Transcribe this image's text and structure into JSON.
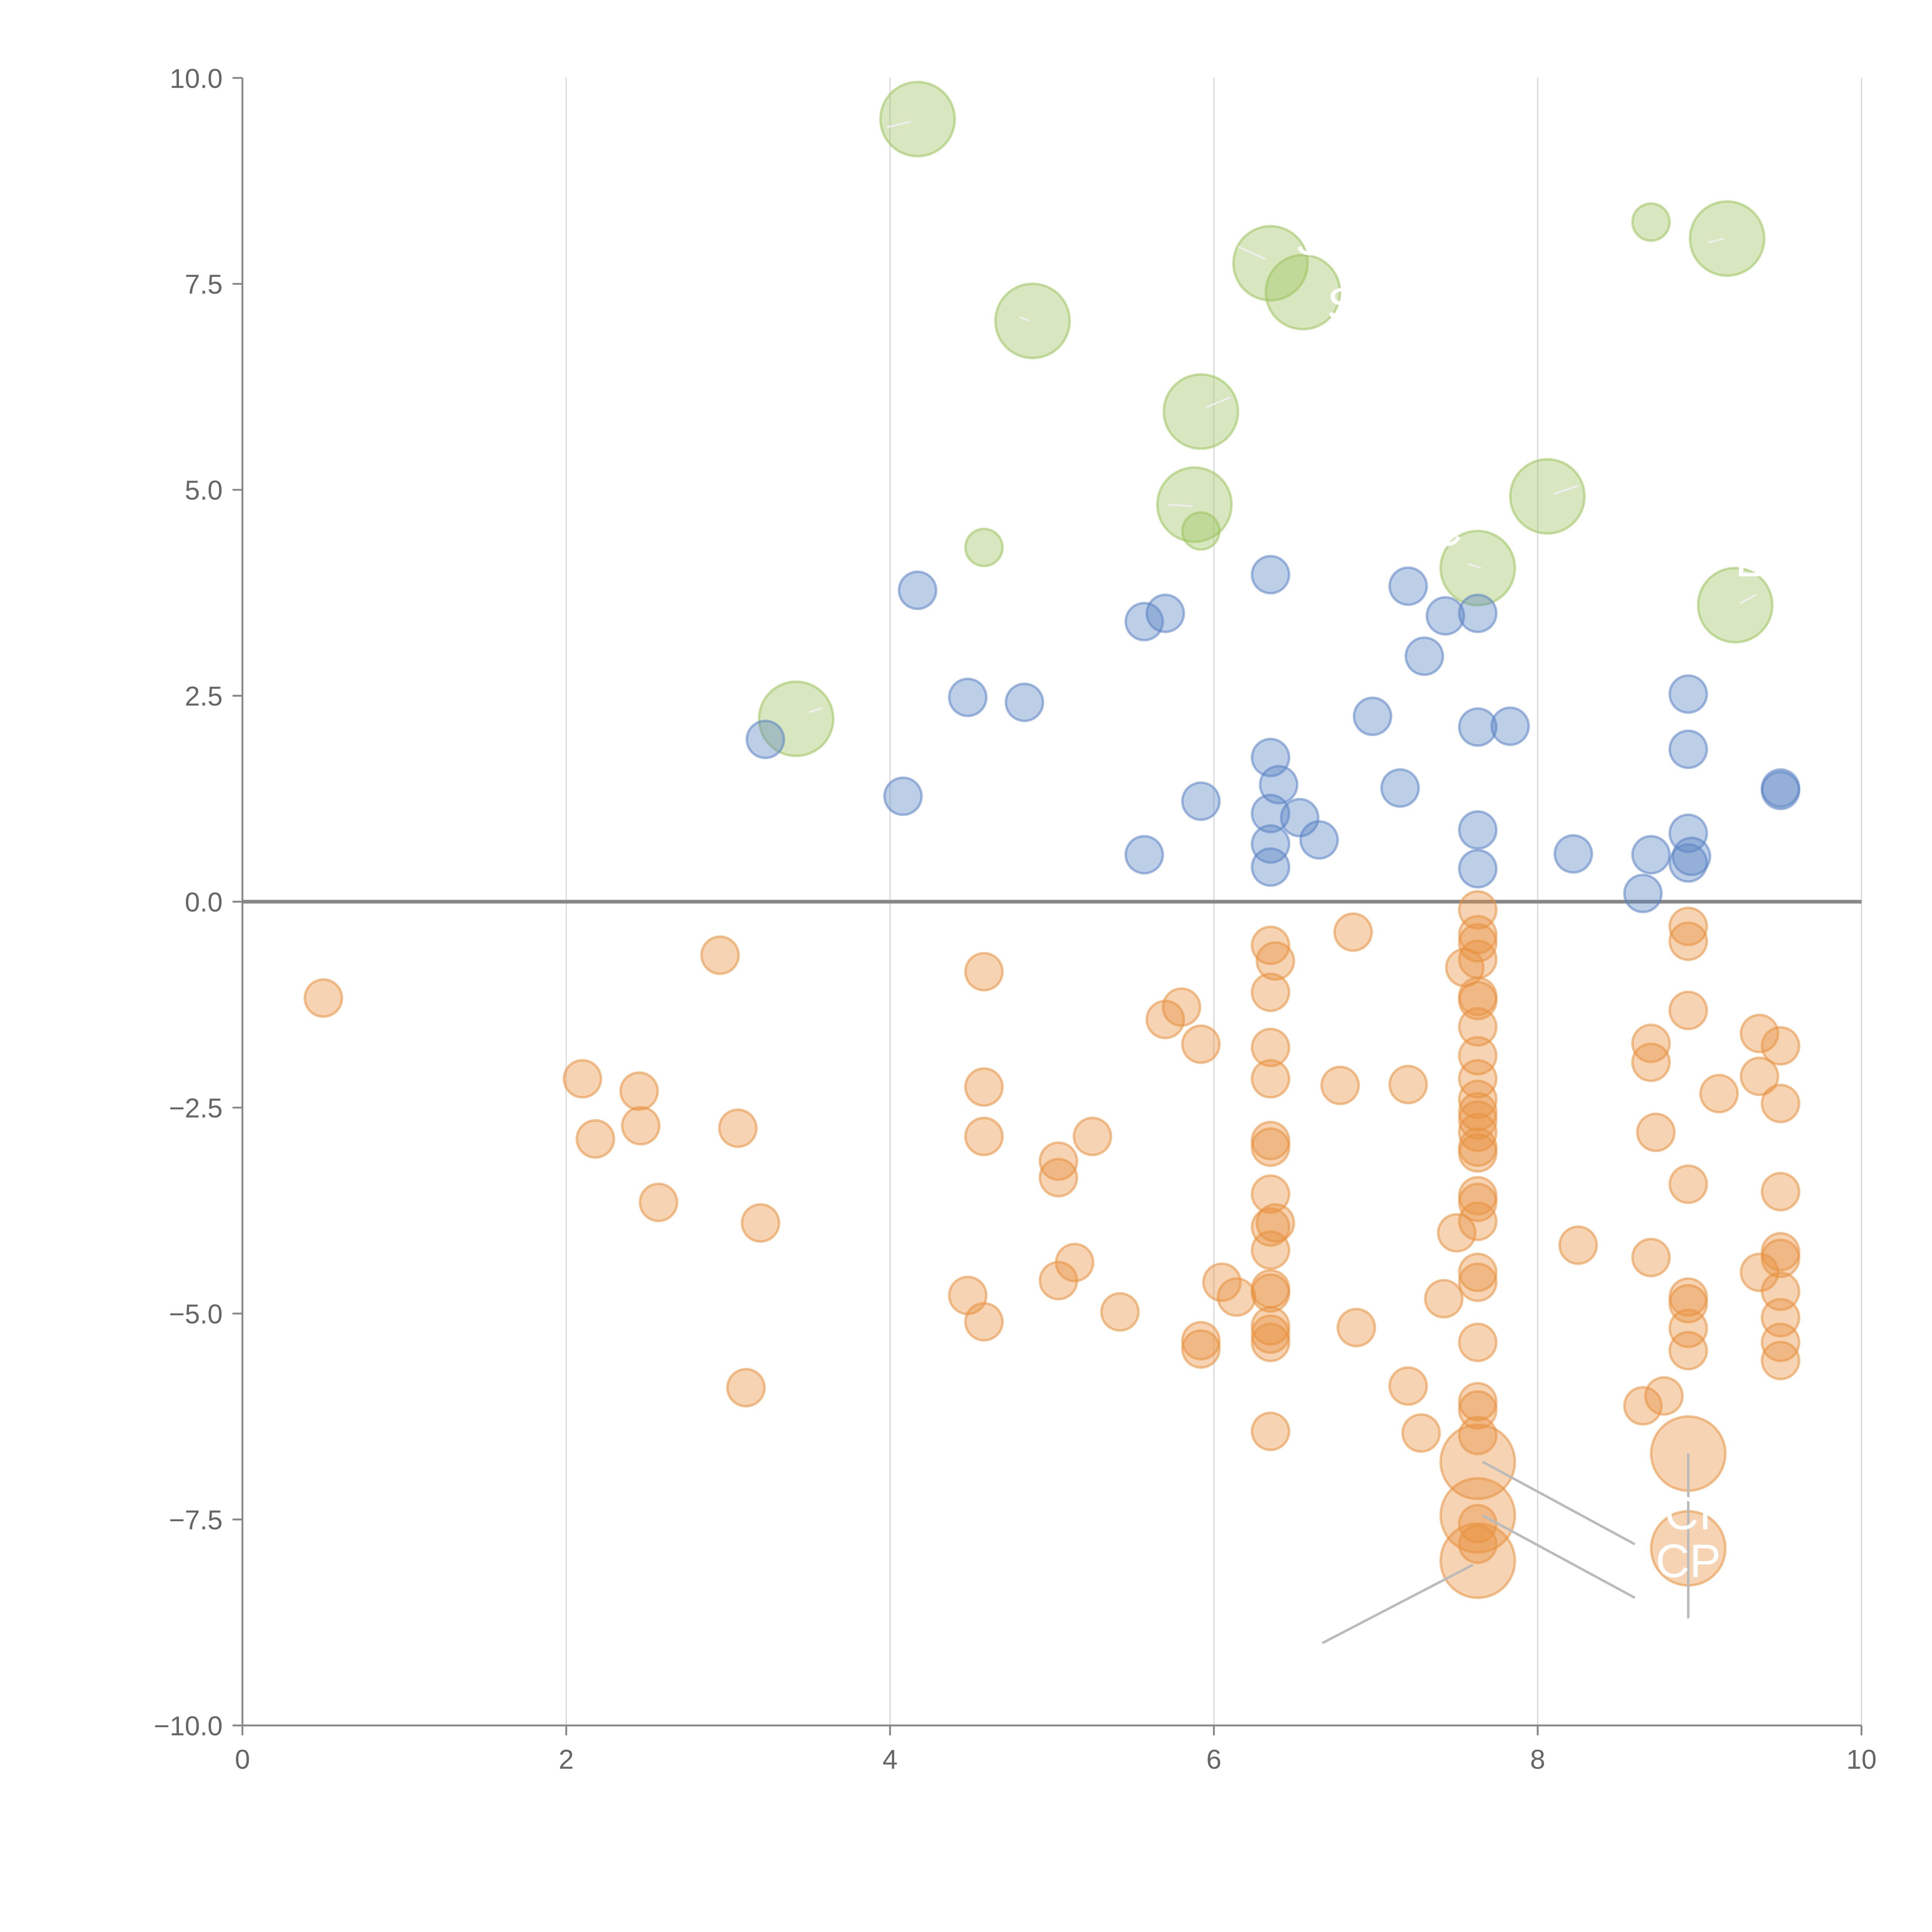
{
  "chart_data": {
    "type": "scatter",
    "title": "",
    "xlabel": "",
    "ylabel": "",
    "xlim": [
      0,
      10
    ],
    "ylim": [
      -10,
      10
    ],
    "x_ticks": [
      "0",
      "2",
      "4",
      "6",
      "8",
      "10"
    ],
    "y_ticks": [
      "10.0",
      "7.5",
      "5.0",
      "2.5",
      "0.0",
      "−2.5",
      "−5.0",
      "−7.5",
      "−10.0"
    ],
    "x_tick_values": [
      0,
      2,
      4,
      6,
      8,
      10
    ],
    "y_tick_values": [
      10,
      7.5,
      5,
      2.5,
      0,
      -2.5,
      -5,
      -7.5,
      -10
    ],
    "grid": "vertical",
    "reference_line_y": 0,
    "colors": {
      "green": "#9dc45f",
      "blue": "#5b84c4",
      "orange": "#e8913f"
    },
    "series": [
      {
        "name": "green",
        "color": "#9dc45f",
        "points": [
          {
            "x": 4.17,
            "y": 9.5,
            "size": 30
          },
          {
            "x": 6.35,
            "y": 7.75,
            "size": 30
          },
          {
            "x": 6.55,
            "y": 7.4,
            "size": 30
          },
          {
            "x": 4.88,
            "y": 7.05,
            "size": 30
          },
          {
            "x": 9.17,
            "y": 8.05,
            "size": 30
          },
          {
            "x": 8.7,
            "y": 8.25,
            "size": 15
          },
          {
            "x": 5.92,
            "y": 5.95,
            "size": 30
          },
          {
            "x": 5.88,
            "y": 4.82,
            "size": 30
          },
          {
            "x": 5.92,
            "y": 4.5,
            "size": 15
          },
          {
            "x": 8.06,
            "y": 4.92,
            "size": 30
          },
          {
            "x": 7.63,
            "y": 4.05,
            "size": 30
          },
          {
            "x": 9.22,
            "y": 3.6,
            "size": 30
          },
          {
            "x": 4.58,
            "y": 4.3,
            "size": 15
          },
          {
            "x": 3.42,
            "y": 2.22,
            "size": 30
          }
        ]
      },
      {
        "name": "blue",
        "color": "#5b84c4",
        "points": [
          {
            "x": 4.17,
            "y": 3.78
          },
          {
            "x": 5.57,
            "y": 3.4
          },
          {
            "x": 5.7,
            "y": 3.5
          },
          {
            "x": 6.35,
            "y": 3.97
          },
          {
            "x": 7.2,
            "y": 3.83
          },
          {
            "x": 7.43,
            "y": 3.47
          },
          {
            "x": 7.63,
            "y": 3.5
          },
          {
            "x": 7.3,
            "y": 2.98
          },
          {
            "x": 3.23,
            "y": 1.97
          },
          {
            "x": 4.48,
            "y": 2.48
          },
          {
            "x": 4.83,
            "y": 2.42
          },
          {
            "x": 6.98,
            "y": 2.25
          },
          {
            "x": 7.63,
            "y": 2.12
          },
          {
            "x": 7.83,
            "y": 2.13
          },
          {
            "x": 8.93,
            "y": 2.52
          },
          {
            "x": 8.93,
            "y": 1.85
          },
          {
            "x": 4.08,
            "y": 1.28
          },
          {
            "x": 5.92,
            "y": 1.22
          },
          {
            "x": 6.35,
            "y": 1.75
          },
          {
            "x": 6.4,
            "y": 1.42
          },
          {
            "x": 6.35,
            "y": 1.07
          },
          {
            "x": 6.53,
            "y": 1.02
          },
          {
            "x": 7.15,
            "y": 1.38
          },
          {
            "x": 9.5,
            "y": 1.35
          },
          {
            "x": 9.5,
            "y": 1.38
          },
          {
            "x": 5.57,
            "y": 0.57
          },
          {
            "x": 6.35,
            "y": 0.7
          },
          {
            "x": 6.35,
            "y": 0.42
          },
          {
            "x": 6.65,
            "y": 0.75
          },
          {
            "x": 7.63,
            "y": 0.87
          },
          {
            "x": 7.63,
            "y": 0.4
          },
          {
            "x": 8.22,
            "y": 0.58
          },
          {
            "x": 8.7,
            "y": 0.57
          },
          {
            "x": 8.93,
            "y": 0.83
          },
          {
            "x": 8.95,
            "y": 0.55
          },
          {
            "x": 8.93,
            "y": 0.47
          },
          {
            "x": 8.65,
            "y": 0.1
          }
        ]
      },
      {
        "name": "orange",
        "color": "#e8913f",
        "points": [
          {
            "x": 0.5,
            "y": -1.17
          },
          {
            "x": 2.95,
            "y": -0.65
          },
          {
            "x": 2.1,
            "y": -2.15
          },
          {
            "x": 2.45,
            "y": -2.3
          },
          {
            "x": 2.18,
            "y": -2.88
          },
          {
            "x": 2.46,
            "y": -2.72
          },
          {
            "x": 3.06,
            "y": -2.75
          },
          {
            "x": 2.57,
            "y": -3.65
          },
          {
            "x": 3.2,
            "y": -3.9
          },
          {
            "x": 3.11,
            "y": -5.9
          },
          {
            "x": 4.58,
            "y": -0.85
          },
          {
            "x": 4.58,
            "y": -2.25
          },
          {
            "x": 4.58,
            "y": -2.85
          },
          {
            "x": 5.04,
            "y": -3.15
          },
          {
            "x": 5.04,
            "y": -3.35
          },
          {
            "x": 5.25,
            "y": -2.85
          },
          {
            "x": 5.14,
            "y": -4.38
          },
          {
            "x": 5.04,
            "y": -4.6
          },
          {
            "x": 4.48,
            "y": -4.78
          },
          {
            "x": 4.58,
            "y": -5.1
          },
          {
            "x": 5.42,
            "y": -4.98
          },
          {
            "x": 5.7,
            "y": -1.43
          },
          {
            "x": 5.8,
            "y": -1.28
          },
          {
            "x": 5.92,
            "y": -1.73
          },
          {
            "x": 6.05,
            "y": -4.62
          },
          {
            "x": 6.14,
            "y": -4.8
          },
          {
            "x": 5.92,
            "y": -5.33
          },
          {
            "x": 5.92,
            "y": -5.43
          },
          {
            "x": 6.35,
            "y": -0.53
          },
          {
            "x": 6.38,
            "y": -0.72
          },
          {
            "x": 6.35,
            "y": -1.1
          },
          {
            "x": 6.35,
            "y": -1.77
          },
          {
            "x": 6.35,
            "y": -2.15
          },
          {
            "x": 6.35,
            "y": -2.9
          },
          {
            "x": 6.35,
            "y": -2.98
          },
          {
            "x": 6.35,
            "y": -3.55
          },
          {
            "x": 6.35,
            "y": -3.95
          },
          {
            "x": 6.38,
            "y": -3.9
          },
          {
            "x": 6.35,
            "y": -4.23
          },
          {
            "x": 6.35,
            "y": -4.7
          },
          {
            "x": 6.35,
            "y": -4.75
          },
          {
            "x": 6.35,
            "y": -5.15
          },
          {
            "x": 6.35,
            "y": -5.25
          },
          {
            "x": 6.35,
            "y": -5.35
          },
          {
            "x": 6.35,
            "y": -6.43
          },
          {
            "x": 6.86,
            "y": -0.37
          },
          {
            "x": 6.78,
            "y": -2.23
          },
          {
            "x": 6.88,
            "y": -5.17
          },
          {
            "x": 7.2,
            "y": -2.22
          },
          {
            "x": 7.2,
            "y": -5.88
          },
          {
            "x": 7.28,
            "y": -6.45
          },
          {
            "x": 7.42,
            "y": -4.82
          },
          {
            "x": 7.5,
            "y": -4.02
          },
          {
            "x": 7.55,
            "y": -0.8
          },
          {
            "x": 7.63,
            "y": -0.1
          },
          {
            "x": 7.63,
            "y": -0.4
          },
          {
            "x": 7.63,
            "y": -0.5
          },
          {
            "x": 7.63,
            "y": -0.7
          },
          {
            "x": 7.63,
            "y": -1.15
          },
          {
            "x": 7.63,
            "y": -1.2
          },
          {
            "x": 7.63,
            "y": -1.52
          },
          {
            "x": 7.63,
            "y": -1.87
          },
          {
            "x": 7.63,
            "y": -2.15
          },
          {
            "x": 7.63,
            "y": -2.4
          },
          {
            "x": 7.63,
            "y": -2.55
          },
          {
            "x": 7.63,
            "y": -2.65
          },
          {
            "x": 7.63,
            "y": -2.8
          },
          {
            "x": 7.63,
            "y": -2.98
          },
          {
            "x": 7.63,
            "y": -3.05
          },
          {
            "x": 7.63,
            "y": -3.57
          },
          {
            "x": 7.63,
            "y": -3.65
          },
          {
            "x": 7.63,
            "y": -3.88
          },
          {
            "x": 7.63,
            "y": -4.5
          },
          {
            "x": 7.63,
            "y": -4.62
          },
          {
            "x": 7.63,
            "y": -5.35
          },
          {
            "x": 7.63,
            "y": -6.07
          },
          {
            "x": 7.63,
            "y": -6.17
          },
          {
            "x": 7.63,
            "y": -6.48
          },
          {
            "x": 7.63,
            "y": -7.55
          },
          {
            "x": 7.63,
            "y": -7.8
          },
          {
            "x": 8.25,
            "y": -4.17
          },
          {
            "x": 8.7,
            "y": -1.72
          },
          {
            "x": 8.7,
            "y": -1.95
          },
          {
            "x": 8.73,
            "y": -2.8
          },
          {
            "x": 8.7,
            "y": -4.32
          },
          {
            "x": 8.65,
            "y": -6.12
          },
          {
            "x": 8.78,
            "y": -6.0
          },
          {
            "x": 8.93,
            "y": -0.3
          },
          {
            "x": 8.93,
            "y": -0.48
          },
          {
            "x": 8.93,
            "y": -1.32
          },
          {
            "x": 8.93,
            "y": -3.43
          },
          {
            "x": 8.93,
            "y": -4.8
          },
          {
            "x": 8.93,
            "y": -4.88
          },
          {
            "x": 8.93,
            "y": -5.18
          },
          {
            "x": 8.93,
            "y": -5.45
          },
          {
            "x": 9.12,
            "y": -2.33
          },
          {
            "x": 9.37,
            "y": -1.6
          },
          {
            "x": 9.37,
            "y": -2.12
          },
          {
            "x": 9.37,
            "y": -4.5
          },
          {
            "x": 9.5,
            "y": -1.75
          },
          {
            "x": 9.5,
            "y": -2.45
          },
          {
            "x": 9.5,
            "y": -3.52
          },
          {
            "x": 9.5,
            "y": -4.25
          },
          {
            "x": 9.5,
            "y": -4.33
          },
          {
            "x": 9.5,
            "y": -4.73
          },
          {
            "x": 9.5,
            "y": -5.05
          },
          {
            "x": 9.5,
            "y": -5.35
          },
          {
            "x": 9.5,
            "y": -5.57
          },
          {
            "x": 7.63,
            "y": -6.8,
            "size": 30
          },
          {
            "x": 7.63,
            "y": -7.45,
            "size": 30
          },
          {
            "x": 7.63,
            "y": -8.0,
            "size": 30
          },
          {
            "x": 8.93,
            "y": -6.7,
            "size": 30
          },
          {
            "x": 8.93,
            "y": -7.85,
            "size": 30
          }
        ]
      }
    ],
    "annotation_fragments": [
      "S",
      "SH",
      "C",
      "CI",
      "CP",
      "L"
    ]
  }
}
